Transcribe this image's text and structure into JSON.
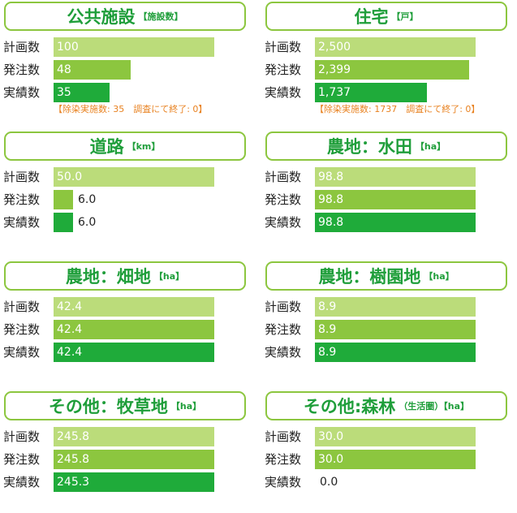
{
  "colors": {
    "planned": "#bbdc7a",
    "ordered": "#8cc63f",
    "actual": "#1fab3a",
    "accent": "#1f9e3a",
    "note": "#e8811f"
  },
  "row_labels": [
    "計画数",
    "発注数",
    "実績数"
  ],
  "chart_data": [
    {
      "type": "bar",
      "title": "公共施設",
      "unit": "【施設数】",
      "categories": [
        "計画数",
        "発注数",
        "実績数"
      ],
      "values": [
        100,
        48,
        35
      ],
      "value_labels": [
        "100",
        "48",
        "35"
      ],
      "max": 100,
      "note": "【除染実施数: 35　調査にて終了: 0】"
    },
    {
      "type": "bar",
      "title": "住宅",
      "unit": "【戸】",
      "categories": [
        "計画数",
        "発注数",
        "実績数"
      ],
      "values": [
        2500,
        2399,
        1737
      ],
      "value_labels": [
        "2,500",
        "2,399",
        "1,737"
      ],
      "max": 2500,
      "note": "【除染実施数: 1737　調査にて終了: 0】"
    },
    {
      "type": "bar",
      "title": "道路",
      "unit": "【km】",
      "categories": [
        "計画数",
        "発注数",
        "実績数"
      ],
      "values": [
        50.0,
        6.0,
        6.0
      ],
      "value_labels": [
        "50.0",
        "6.0",
        "6.0"
      ],
      "max": 50.0,
      "note": ""
    },
    {
      "type": "bar",
      "title": "農地：水田",
      "unit": "【ha】",
      "categories": [
        "計画数",
        "発注数",
        "実績数"
      ],
      "values": [
        98.8,
        98.8,
        98.8
      ],
      "value_labels": [
        "98.8",
        "98.8",
        "98.8"
      ],
      "max": 98.8,
      "note": ""
    },
    {
      "type": "bar",
      "title": "農地：畑地",
      "unit": "【ha】",
      "categories": [
        "計画数",
        "発注数",
        "実績数"
      ],
      "values": [
        42.4,
        42.4,
        42.4
      ],
      "value_labels": [
        "42.4",
        "42.4",
        "42.4"
      ],
      "max": 42.4,
      "note": ""
    },
    {
      "type": "bar",
      "title": "農地：樹園地",
      "unit": "【ha】",
      "categories": [
        "計画数",
        "発注数",
        "実績数"
      ],
      "values": [
        8.9,
        8.9,
        8.9
      ],
      "value_labels": [
        "8.9",
        "8.9",
        "8.9"
      ],
      "max": 8.9,
      "note": ""
    },
    {
      "type": "bar",
      "title": "その他：牧草地",
      "unit": "【ha】",
      "categories": [
        "計画数",
        "発注数",
        "実績数"
      ],
      "values": [
        245.8,
        245.8,
        245.3
      ],
      "value_labels": [
        "245.8",
        "245.8",
        "245.3"
      ],
      "max": 245.8,
      "note": ""
    },
    {
      "type": "bar",
      "title": "その他:森林",
      "unit": "（生活圏）【ha】",
      "categories": [
        "計画数",
        "発注数",
        "実績数"
      ],
      "values": [
        30.0,
        30.0,
        0.0
      ],
      "value_labels": [
        "30.0",
        "30.0",
        "0.0"
      ],
      "max": 30.0,
      "note": ""
    }
  ]
}
